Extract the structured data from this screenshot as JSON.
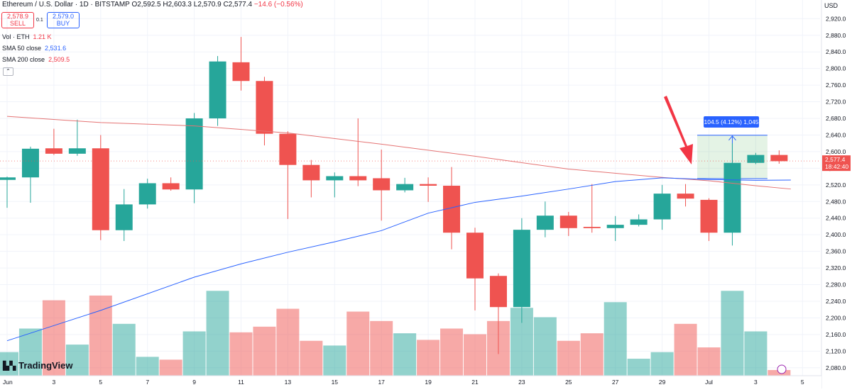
{
  "header": {
    "title": "Ethereum / U.S. Dollar · 1D · BITSTAMP",
    "ohlc": "O2,592.5 H2,603.3 L2,570.9 C2,577.4",
    "change": "−14.6 (−0.56%)"
  },
  "trade": {
    "sell_price": "2,578.9",
    "sell_label": "SELL",
    "spread": "0.1",
    "buy_price": "2,579.0",
    "buy_label": "BUY"
  },
  "indicators": {
    "vol_label": "Vol · ETH",
    "vol_value": "1.21 K",
    "sma50_label": "SMA 50 close",
    "sma50_value": "2,531.6",
    "sma200_label": "SMA 200 close",
    "sma200_value": "2,509.5"
  },
  "measure_label": "104.5 (4.12%) 1,045",
  "price_tag": {
    "price": "2,577.4",
    "countdown": "18:42:40"
  },
  "currency": "USD",
  "logo": "TradingView",
  "colors": {
    "up": "#26a69a",
    "down": "#ef5350",
    "sma50": "#2962ff",
    "sma200": "#e57373",
    "arrow": "#f23645",
    "measure": "#2962ff"
  },
  "chart_data": {
    "type": "candlestick",
    "ylim": [
      2040,
      2940
    ],
    "y_ticks": [
      2080,
      2120,
      2160,
      2200,
      2240,
      2280,
      2320,
      2360,
      2400,
      2440,
      2480,
      2520,
      2560,
      2600,
      2640,
      2680,
      2720,
      2760,
      2800,
      2840,
      2880,
      2920
    ],
    "x_tick_labels": [
      "Jun",
      "3",
      "5",
      "7",
      "9",
      "11",
      "13",
      "15",
      "17",
      "19",
      "21",
      "23",
      "25",
      "27",
      "29",
      "Jul",
      "3",
      "5"
    ],
    "candles": [
      {
        "date": "Jun 1",
        "o": 2532,
        "h": 2540,
        "l": 2465,
        "c": 2538
      },
      {
        "date": "Jun 2",
        "o": 2538,
        "h": 2612,
        "l": 2477,
        "c": 2607
      },
      {
        "date": "Jun 3",
        "o": 2608,
        "h": 2655,
        "l": 2592,
        "c": 2595
      },
      {
        "date": "Jun 4",
        "o": 2595,
        "h": 2677,
        "l": 2590,
        "c": 2608
      },
      {
        "date": "Jun 5",
        "o": 2608,
        "h": 2640,
        "l": 2387,
        "c": 2411
      },
      {
        "date": "Jun 6",
        "o": 2411,
        "h": 2510,
        "l": 2385,
        "c": 2473
      },
      {
        "date": "Jun 7",
        "o": 2473,
        "h": 2535,
        "l": 2463,
        "c": 2524
      },
      {
        "date": "Jun 8",
        "o": 2524,
        "h": 2538,
        "l": 2506,
        "c": 2509
      },
      {
        "date": "Jun 9",
        "o": 2509,
        "h": 2693,
        "l": 2476,
        "c": 2680
      },
      {
        "date": "Jun 10",
        "o": 2680,
        "h": 2830,
        "l": 2662,
        "c": 2817
      },
      {
        "date": "Jun 11",
        "o": 2815,
        "h": 2876,
        "l": 2747,
        "c": 2770
      },
      {
        "date": "Jun 12",
        "o": 2770,
        "h": 2780,
        "l": 2615,
        "c": 2643
      },
      {
        "date": "Jun 13",
        "o": 2643,
        "h": 2649,
        "l": 2438,
        "c": 2568
      },
      {
        "date": "Jun 14",
        "o": 2568,
        "h": 2580,
        "l": 2490,
        "c": 2531
      },
      {
        "date": "Jun 15",
        "o": 2531,
        "h": 2550,
        "l": 2490,
        "c": 2541
      },
      {
        "date": "Jun 16",
        "o": 2541,
        "h": 2680,
        "l": 2517,
        "c": 2531
      },
      {
        "date": "Jun 17",
        "o": 2536,
        "h": 2605,
        "l": 2434,
        "c": 2507
      },
      {
        "date": "Jun 18",
        "o": 2507,
        "h": 2537,
        "l": 2502,
        "c": 2522
      },
      {
        "date": "Jun 19",
        "o": 2522,
        "h": 2538,
        "l": 2479,
        "c": 2518
      },
      {
        "date": "Jun 20",
        "o": 2518,
        "h": 2563,
        "l": 2365,
        "c": 2405
      },
      {
        "date": "Jun 21",
        "o": 2405,
        "h": 2417,
        "l": 2218,
        "c": 2295
      },
      {
        "date": "Jun 22",
        "o": 2301,
        "h": 2307,
        "l": 2113,
        "c": 2226
      },
      {
        "date": "Jun 23",
        "o": 2226,
        "h": 2440,
        "l": 2188,
        "c": 2412
      },
      {
        "date": "Jun 24",
        "o": 2412,
        "h": 2480,
        "l": 2394,
        "c": 2446
      },
      {
        "date": "Jun 25",
        "o": 2446,
        "h": 2455,
        "l": 2397,
        "c": 2416
      },
      {
        "date": "Jun 26",
        "o": 2419,
        "h": 2522,
        "l": 2405,
        "c": 2416
      },
      {
        "date": "Jun 27",
        "o": 2416,
        "h": 2445,
        "l": 2385,
        "c": 2424
      },
      {
        "date": "Jun 28",
        "o": 2424,
        "h": 2449,
        "l": 2420,
        "c": 2437
      },
      {
        "date": "Jun 29",
        "o": 2437,
        "h": 2520,
        "l": 2412,
        "c": 2499
      },
      {
        "date": "Jun 30",
        "o": 2499,
        "h": 2522,
        "l": 2468,
        "c": 2487
      },
      {
        "date": "Jul 1",
        "o": 2484,
        "h": 2488,
        "l": 2385,
        "c": 2405
      },
      {
        "date": "Jul 2",
        "o": 2405,
        "h": 2620,
        "l": 2374,
        "c": 2573
      },
      {
        "date": "Jul 3",
        "o": 2573,
        "h": 2597,
        "l": 2570,
        "c": 2592
      },
      {
        "date": "Jul 4",
        "o": 2592,
        "h": 2603,
        "l": 2571,
        "c": 2577
      }
    ],
    "volume": [
      0.25,
      0.5,
      0.8,
      0.33,
      0.85,
      0.55,
      0.2,
      0.17,
      0.47,
      0.9,
      0.46,
      0.52,
      0.71,
      0.37,
      0.32,
      0.68,
      0.58,
      0.45,
      0.38,
      0.5,
      0.44,
      0.58,
      0.72,
      0.62,
      0.37,
      0.45,
      0.78,
      0.18,
      0.25,
      0.55,
      0.3,
      0.9,
      0.47,
      0.06
    ],
    "sma200": [
      [
        0,
        2685
      ],
      [
        4,
        2670
      ],
      [
        8,
        2662
      ],
      [
        12,
        2645
      ],
      [
        16,
        2618
      ],
      [
        20,
        2589
      ],
      [
        24,
        2558
      ],
      [
        28,
        2538
      ],
      [
        30,
        2530
      ],
      [
        32,
        2518
      ],
      [
        33.5,
        2510
      ]
    ],
    "sma50": [
      [
        0,
        2145
      ],
      [
        4,
        2218
      ],
      [
        8,
        2298
      ],
      [
        10,
        2330
      ],
      [
        12,
        2358
      ],
      [
        14,
        2383
      ],
      [
        16,
        2410
      ],
      [
        18,
        2452
      ],
      [
        20,
        2478
      ],
      [
        22,
        2493
      ],
      [
        24,
        2510
      ],
      [
        26,
        2528
      ],
      [
        28,
        2537
      ],
      [
        30,
        2533
      ],
      [
        32,
        2531
      ],
      [
        33.5,
        2531.6
      ]
    ],
    "measure": {
      "x_start": 29.5,
      "x_end": 32.5,
      "y_low": 2535,
      "y_high": 2639.5
    },
    "last_price": 2577.4
  }
}
